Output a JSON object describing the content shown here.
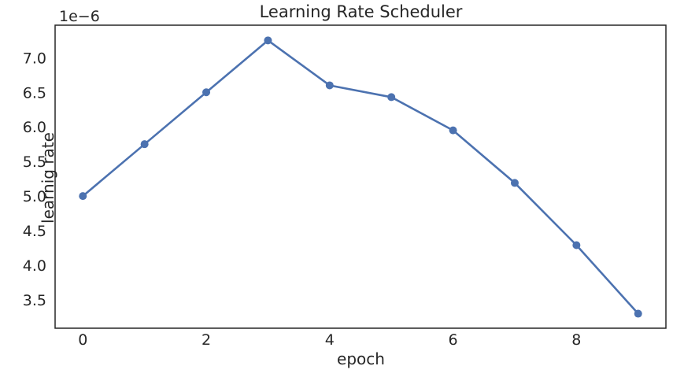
{
  "chart_data": {
    "type": "line",
    "title": "Learning Rate Scheduler",
    "xlabel": "epoch",
    "ylabel": "learnig rate",
    "axis_offset_label": "1e−6",
    "values_unit": "1e-6",
    "x": [
      0,
      1,
      2,
      3,
      4,
      5,
      6,
      7,
      8,
      9
    ],
    "series": [
      {
        "name": "learning rate",
        "values": [
          5.0,
          5.75,
          6.5,
          7.25,
          6.6,
          6.43,
          5.95,
          5.19,
          4.29,
          3.3
        ],
        "color": "#4C72B0",
        "marker": "circle"
      }
    ],
    "xticks": [
      0,
      2,
      4,
      6,
      8
    ],
    "yticks": [
      3.5,
      4.0,
      4.5,
      5.0,
      5.5,
      6.0,
      6.5,
      7.0
    ],
    "xlim": [
      -0.45,
      9.45
    ],
    "ylim": [
      3.09,
      7.47
    ],
    "grid": false,
    "legend": null,
    "colors": {
      "line": "#4C72B0",
      "spine": "#262626",
      "text": "#262626",
      "background": "#ffffff"
    }
  }
}
